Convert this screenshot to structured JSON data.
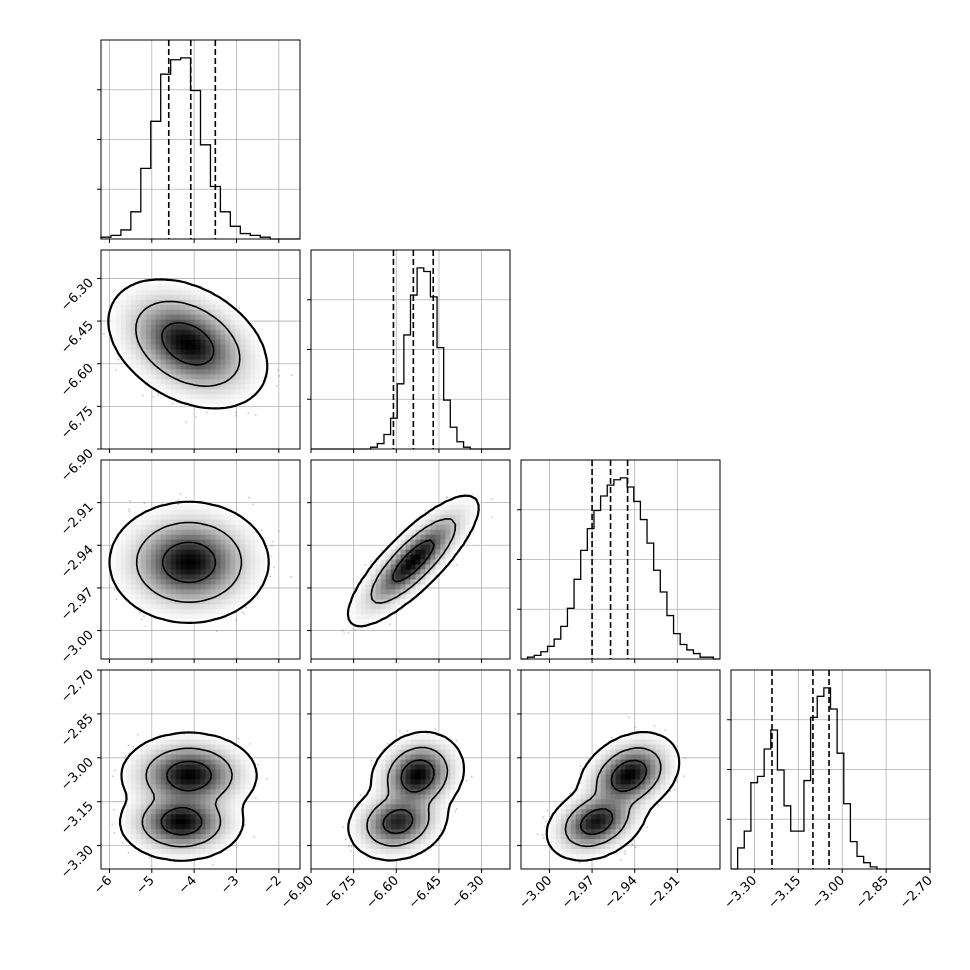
{
  "chart_data": {
    "type": "corner",
    "parameters": [
      {
        "range": [
          -6.2,
          -1.5
        ],
        "ticks": [
          -6,
          -5,
          -4,
          -3,
          -2
        ],
        "tick_labels": [
          "−6",
          "−5",
          "−4",
          "−3",
          "−2"
        ],
        "quantiles": [
          -4.6,
          -4.08,
          -3.5
        ],
        "hist": [
          1,
          2,
          5,
          15,
          39,
          65,
          91,
          99,
          100,
          82,
          52,
          29,
          15,
          7,
          3,
          2,
          1,
          0,
          0,
          0
        ]
      },
      {
        "range": [
          -6.9,
          -6.2
        ],
        "ticks": [
          -6.9,
          -6.75,
          -6.6,
          -6.45,
          -6.3
        ],
        "tick_labels": [
          "−6.90",
          "−6.75",
          "−6.60",
          "−6.45",
          "−6.30"
        ],
        "quantiles": [
          -6.61,
          -6.54,
          -6.47
        ],
        "hist": [
          0,
          0,
          0,
          0,
          0,
          0,
          0,
          0,
          0,
          1,
          3,
          8,
          17,
          36,
          63,
          85,
          100,
          98,
          84,
          56,
          27,
          12,
          4,
          1,
          0,
          0,
          0,
          0,
          0,
          0
        ]
      },
      {
        "range": [
          -3.02,
          -2.88
        ],
        "ticks": [
          -3.0,
          -2.97,
          -2.94,
          -2.91
        ],
        "tick_labels": [
          "−3.00",
          "−2.97",
          "−2.94",
          "−2.91"
        ],
        "quantiles": [
          -2.97,
          -2.957,
          -2.945
        ],
        "hist": [
          0,
          1,
          2,
          4,
          7,
          11,
          18,
          28,
          44,
          60,
          72,
          82,
          90,
          96,
          99,
          100,
          95,
          87,
          77,
          64,
          49,
          37,
          24,
          14,
          8,
          5,
          3,
          1,
          1,
          0
        ]
      },
      {
        "range": [
          -3.38,
          -2.7
        ],
        "ticks": [
          -3.3,
          -3.15,
          -3.0,
          -2.85,
          -2.7
        ],
        "tick_labels": [
          "−3.30",
          "−3.15",
          "−3.00",
          "−2.85",
          "−2.70"
        ],
        "quantiles": [
          -3.24,
          -3.1,
          -3.045
        ],
        "hist": [
          0,
          10,
          18,
          41,
          44,
          57,
          66,
          47,
          30,
          18,
          18,
          42,
          72,
          82,
          86,
          76,
          55,
          31,
          13,
          6,
          3,
          1,
          0,
          0,
          0,
          0,
          0,
          0,
          0,
          0
        ]
      }
    ],
    "pairs": [
      {
        "row": 1,
        "col": 0,
        "modes": [
          {
            "mx": -4.15,
            "my": -6.53,
            "sx": 0.62,
            "sy": 0.075,
            "rho": -0.35,
            "w": 1.0
          }
        ]
      },
      {
        "row": 2,
        "col": 0,
        "modes": [
          {
            "mx": -4.12,
            "my": -2.952,
            "sx": 0.62,
            "sy": 0.014,
            "rho": 0.0,
            "w": 1.0
          }
        ]
      },
      {
        "row": 2,
        "col": 1,
        "modes": [
          {
            "mx": -6.54,
            "my": -2.951,
            "sx": 0.075,
            "sy": 0.015,
            "rho": 0.82,
            "w": 1.0
          }
        ]
      },
      {
        "row": 3,
        "col": 0,
        "modes": [
          {
            "mx": -4.12,
            "my": -3.06,
            "sx": 0.55,
            "sy": 0.05,
            "rho": 0.0,
            "w": 0.55
          },
          {
            "mx": -4.3,
            "my": -3.22,
            "sx": 0.5,
            "sy": 0.045,
            "rho": 0.0,
            "w": 0.45
          }
        ]
      },
      {
        "row": 3,
        "col": 1,
        "modes": [
          {
            "mx": -6.525,
            "my": -3.06,
            "sx": 0.055,
            "sy": 0.05,
            "rho": 0.15,
            "w": 0.55
          },
          {
            "mx": -6.595,
            "my": -3.22,
            "sx": 0.06,
            "sy": 0.045,
            "rho": 0.15,
            "w": 0.45
          }
        ]
      },
      {
        "row": 3,
        "col": 2,
        "modes": [
          {
            "mx": -2.944,
            "my": -3.06,
            "sx": 0.012,
            "sy": 0.05,
            "rho": 0.3,
            "w": 0.55
          },
          {
            "mx": -2.967,
            "my": -3.22,
            "sx": 0.012,
            "sy": 0.045,
            "rho": 0.3,
            "w": 0.45
          }
        ]
      }
    ],
    "quantile_levels": [
      0.16,
      0.5,
      0.84
    ],
    "contour_levels": [
      0.39,
      0.86,
      0.99
    ],
    "grid": true,
    "colors": {
      "line": "#000000",
      "grid": "#b0b0b0",
      "points": "#000000",
      "density_dark": "#000000",
      "density_light": "#ffffff"
    }
  }
}
